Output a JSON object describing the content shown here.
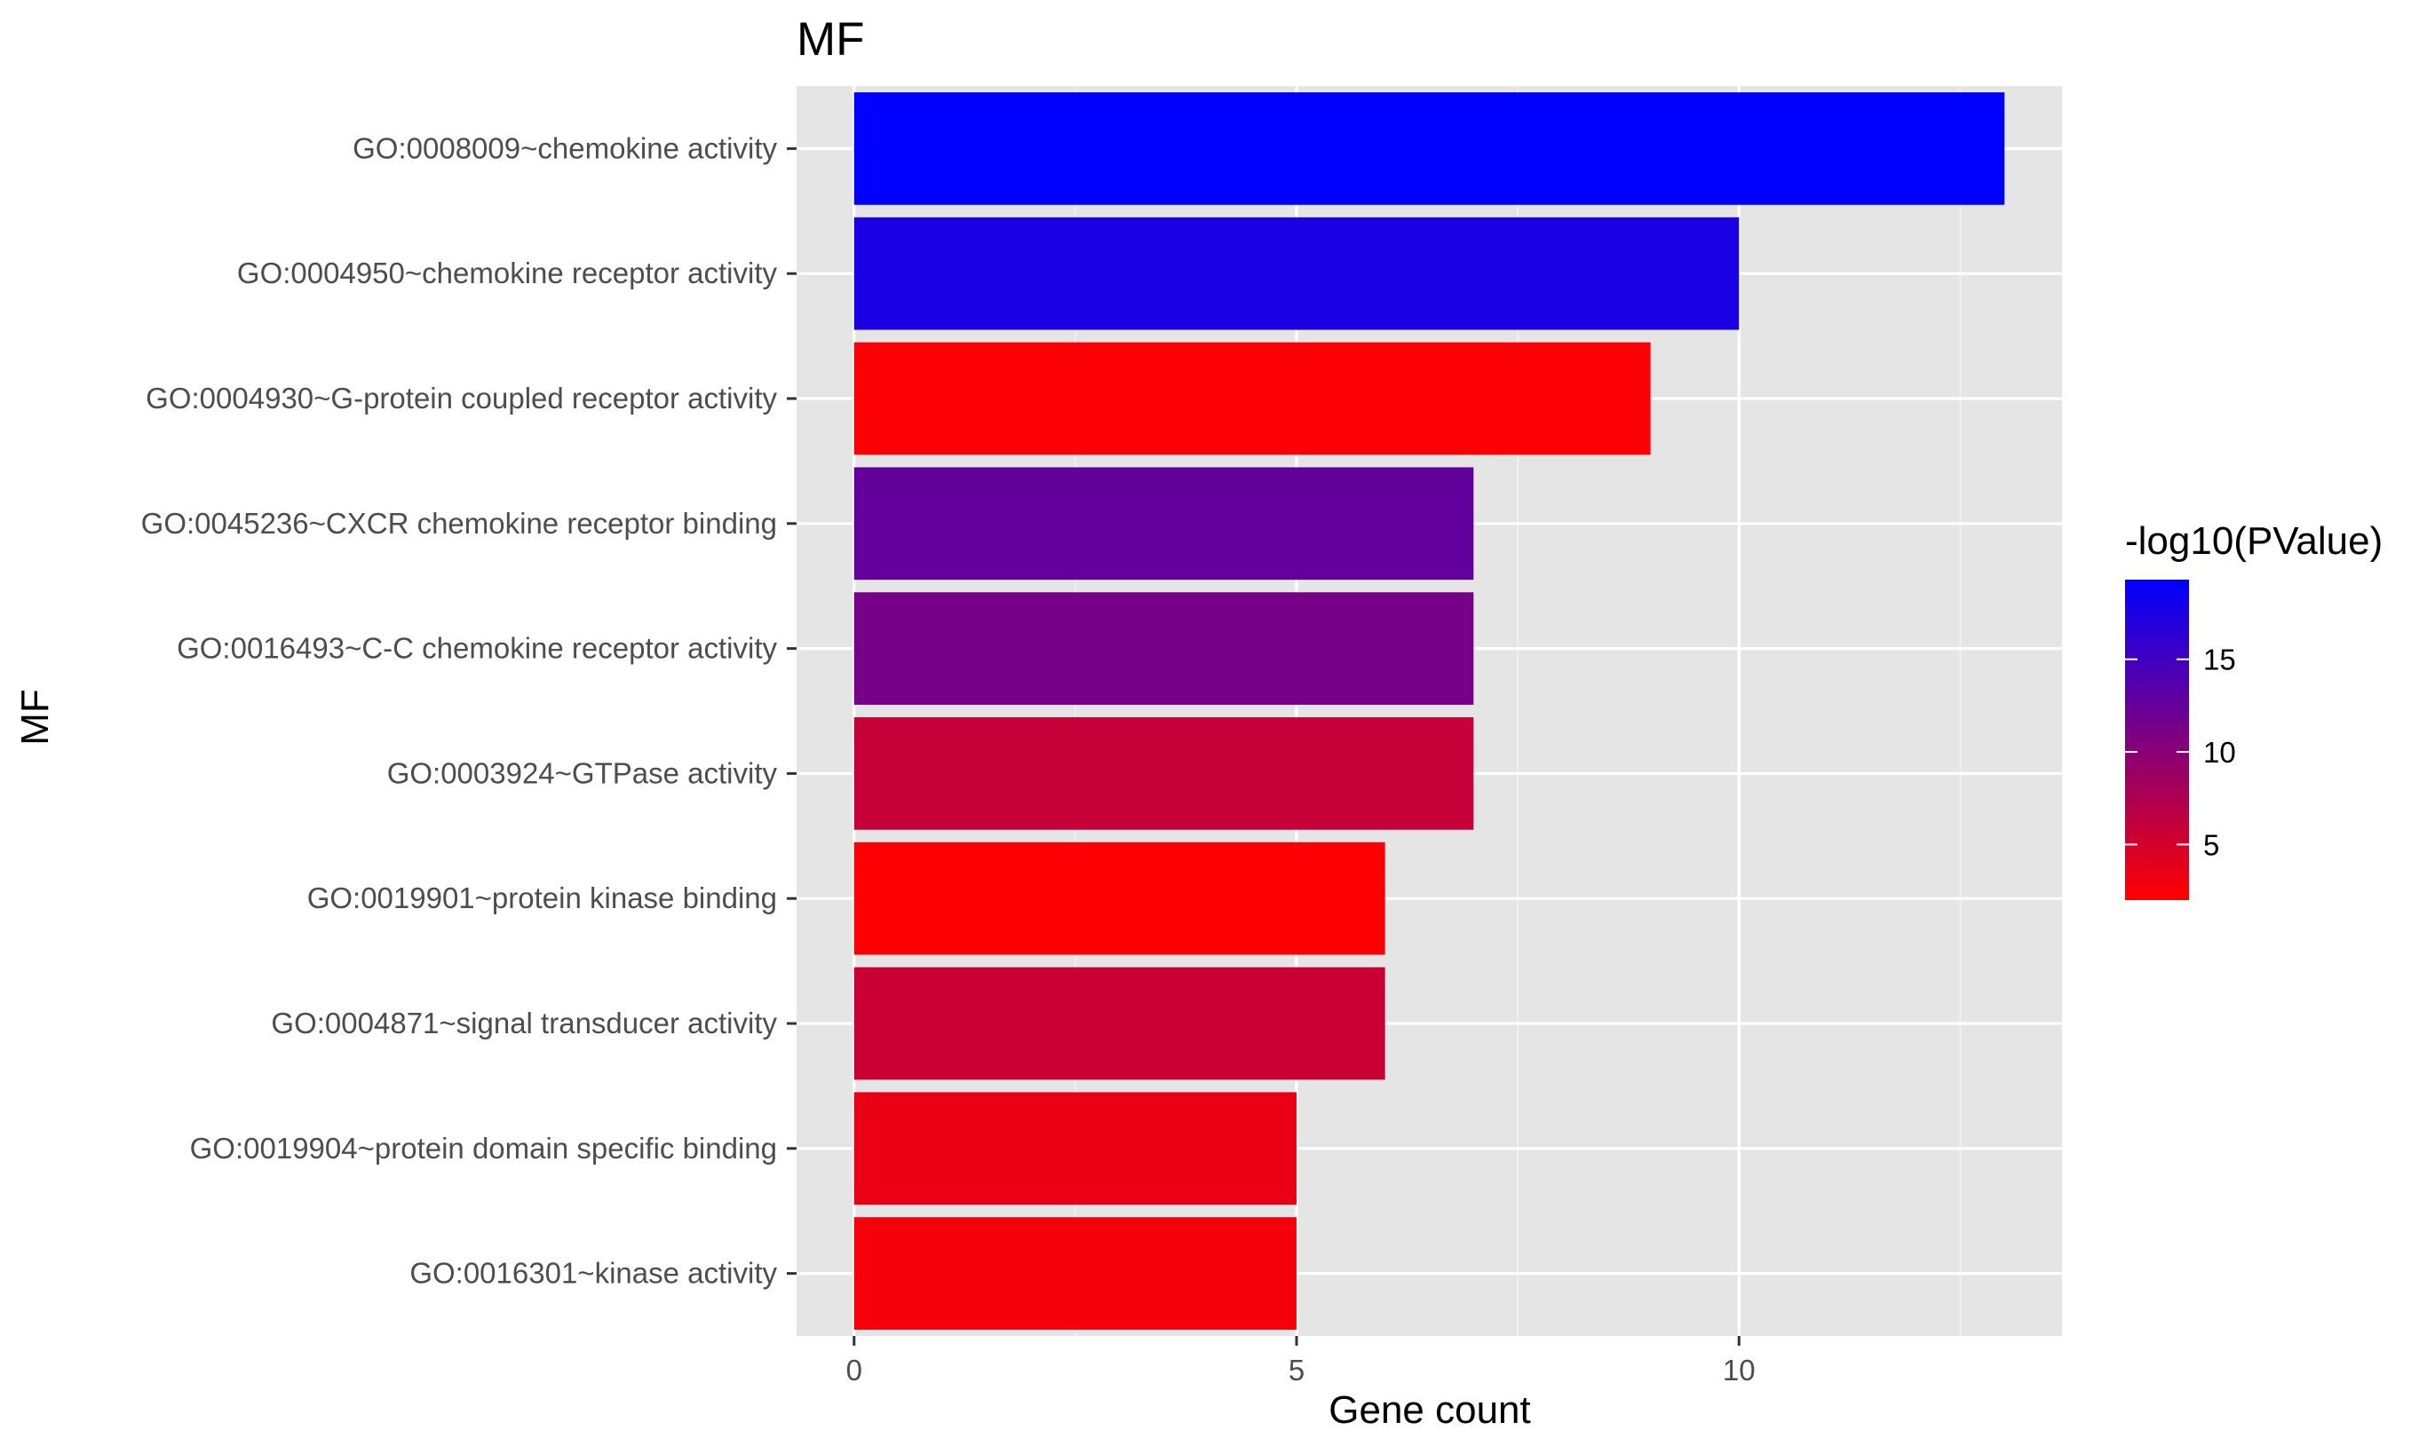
{
  "chart_data": {
    "type": "bar",
    "orientation": "horizontal",
    "title": "MF",
    "xlabel": "Gene count",
    "ylabel": "MF",
    "xlim": [
      -0.65,
      13.65
    ],
    "xticks": [
      0,
      5,
      10
    ],
    "grid": true,
    "categories": [
      "GO:0008009~chemokine activity",
      "GO:0004950~chemokine receptor activity",
      "GO:0004930~G-protein coupled receptor activity",
      "GO:0045236~CXCR chemokine receptor binding",
      "GO:0016493~C-C chemokine receptor activity",
      "GO:0003924~GTPase activity",
      "GO:0019901~protein kinase binding",
      "GO:0004871~signal transducer activity",
      "GO:0019904~protein domain specific binding",
      "GO:0016301~kinase activity"
    ],
    "values": [
      13,
      10,
      9,
      7,
      7,
      7,
      6,
      6,
      5,
      5
    ],
    "color_values": [
      19.3,
      17.5,
      2.3,
      12.6,
      11.2,
      5.9,
      2.2,
      5.6,
      3.4,
      2.7
    ],
    "legend": {
      "title": "-log10(PValue)",
      "placement": "right",
      "ticks": [
        5,
        10,
        15
      ],
      "range": [
        2.0,
        19.3
      ],
      "low_color": "#ff0000",
      "high_color": "#0000ff"
    },
    "colors": {
      "panel_background": "#e5e5e5",
      "grid_major": "#ffffff",
      "grid_minor": "#f2f2f2"
    }
  }
}
